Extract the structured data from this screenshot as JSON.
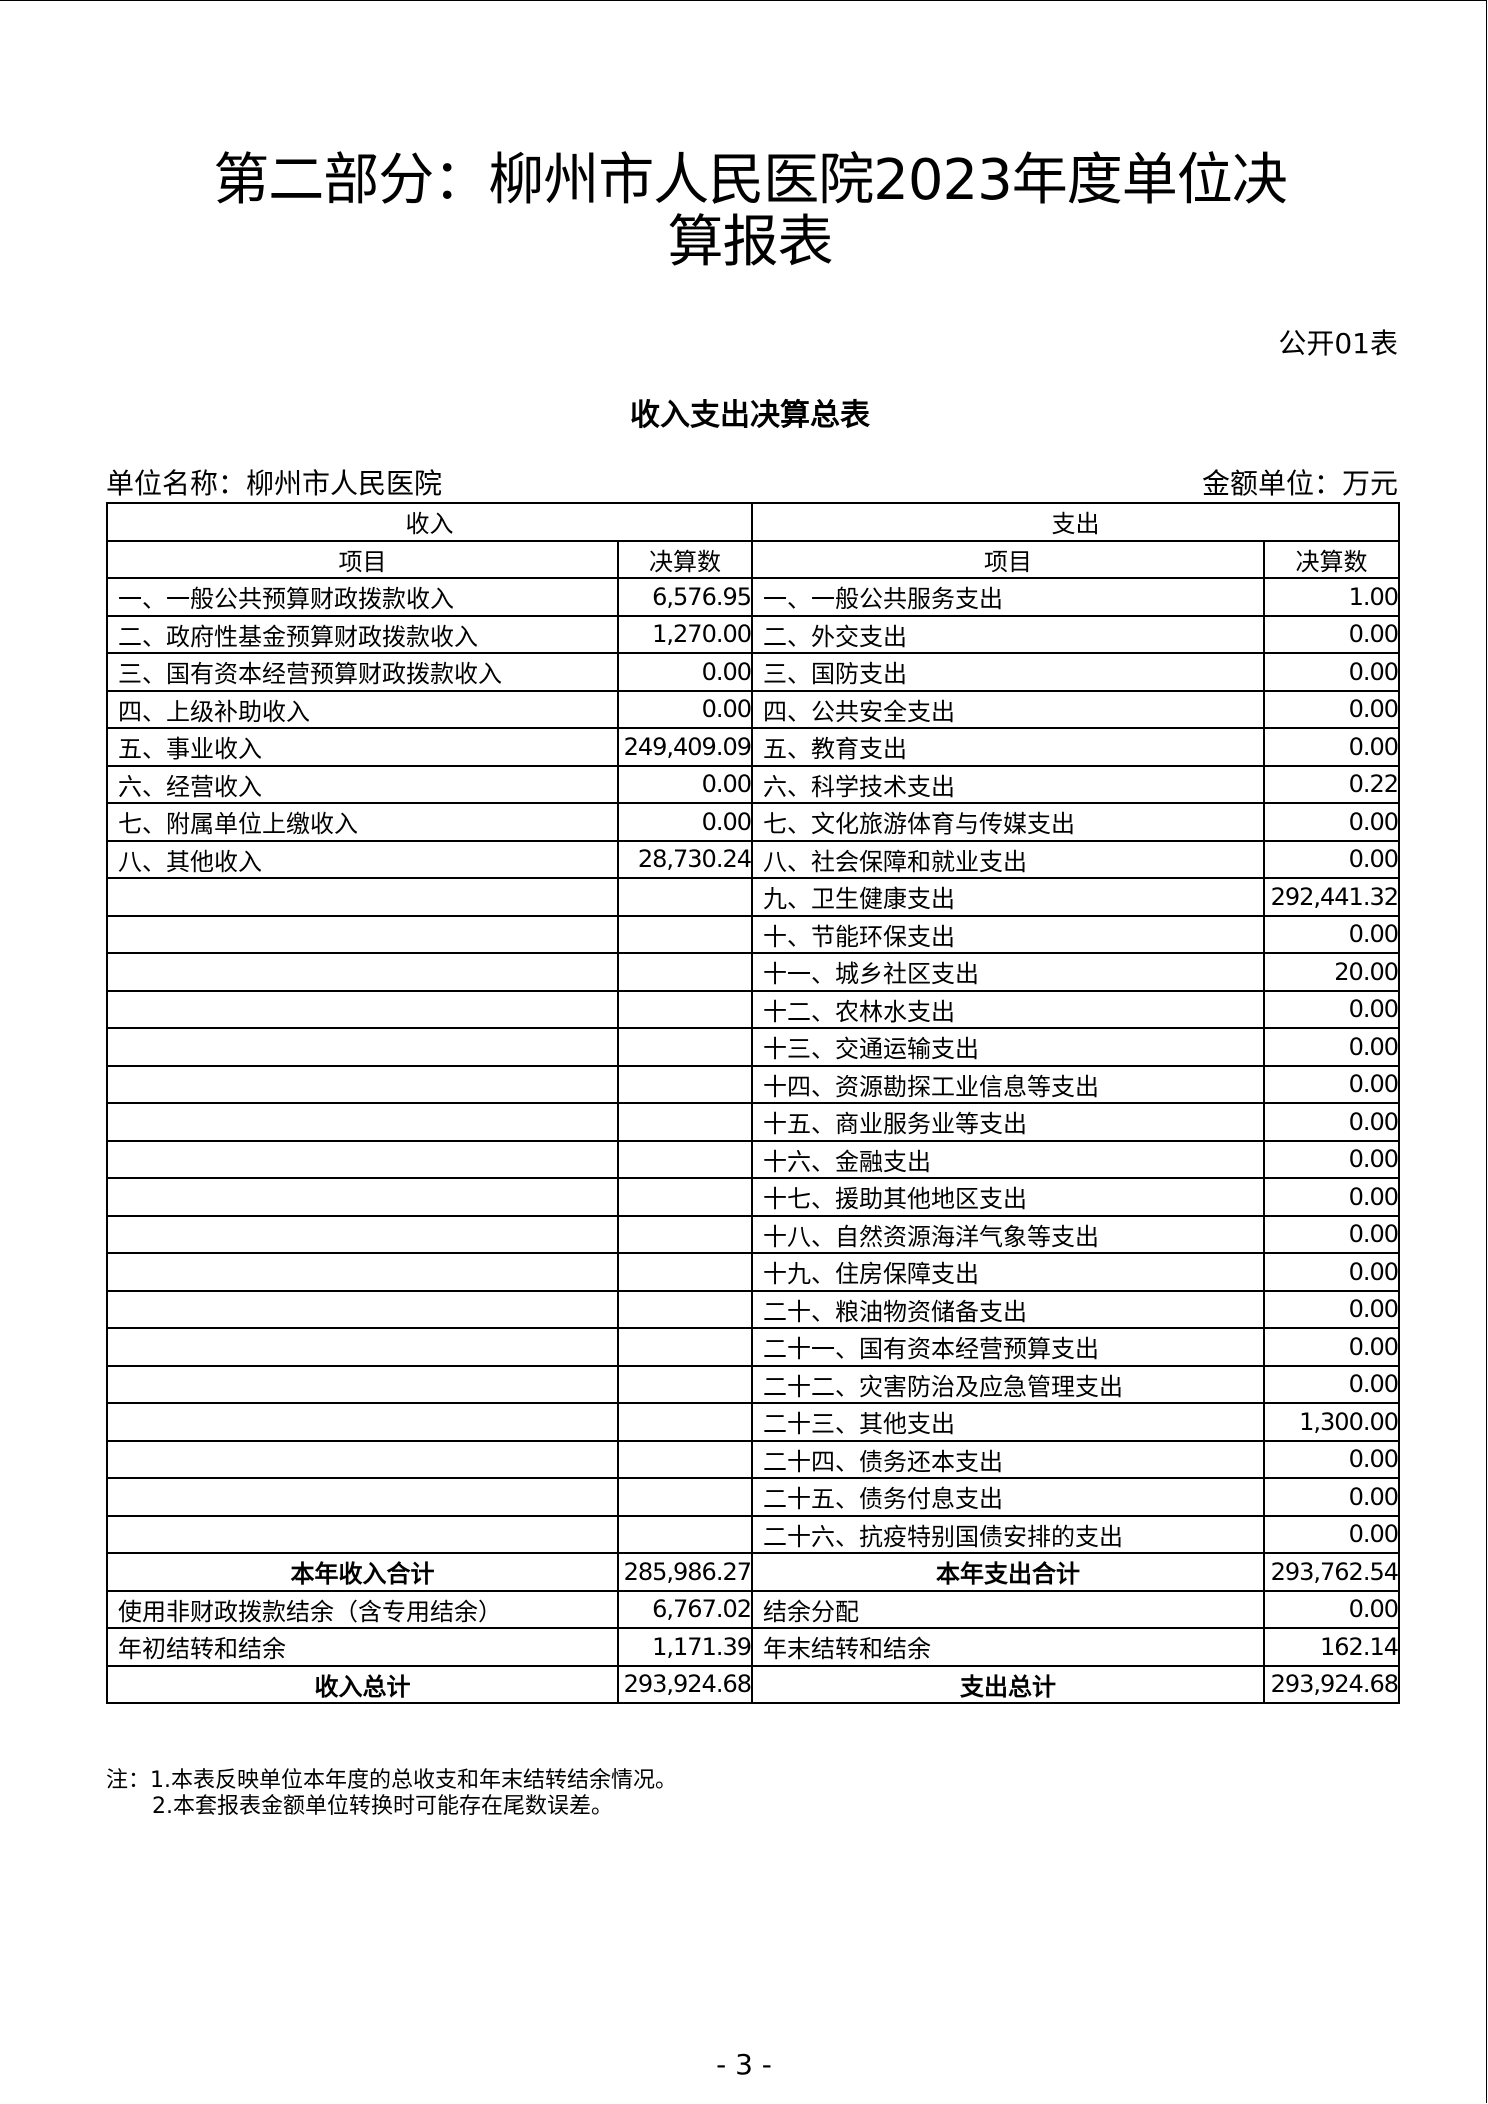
{
  "title_line1": "第二部分：柳州市人民医院2023年度单位决",
  "title_line2": "算报表",
  "table_code": "公开01表",
  "table_title": "收入支出决算总表",
  "unit_name": "单位名称：柳州市人民医院",
  "amount_unit": "金额单位：万元",
  "headers": {
    "income": "收入",
    "expense": "支出",
    "item": "项目",
    "amount": "决算数"
  },
  "income": [
    {
      "label": "一、一般公共预算财政拨款收入",
      "value": "6,576.95"
    },
    {
      "label": "二、政府性基金预算财政拨款收入",
      "value": "1,270.00"
    },
    {
      "label": "三、国有资本经营预算财政拨款收入",
      "value": "0.00"
    },
    {
      "label": "四、上级补助收入",
      "value": "0.00"
    },
    {
      "label": "五、事业收入",
      "value": "249,409.09"
    },
    {
      "label": "六、经营收入",
      "value": "0.00"
    },
    {
      "label": "七、附属单位上缴收入",
      "value": "0.00"
    },
    {
      "label": "八、其他收入",
      "value": "28,730.24"
    }
  ],
  "expense": [
    {
      "label": "一、一般公共服务支出",
      "value": "1.00"
    },
    {
      "label": "二、外交支出",
      "value": "0.00"
    },
    {
      "label": "三、国防支出",
      "value": "0.00"
    },
    {
      "label": "四、公共安全支出",
      "value": "0.00"
    },
    {
      "label": "五、教育支出",
      "value": "0.00"
    },
    {
      "label": "六、科学技术支出",
      "value": "0.22"
    },
    {
      "label": "七、文化旅游体育与传媒支出",
      "value": "0.00"
    },
    {
      "label": "八、社会保障和就业支出",
      "value": "0.00"
    },
    {
      "label": "九、卫生健康支出",
      "value": "292,441.32"
    },
    {
      "label": "十、节能环保支出",
      "value": "0.00"
    },
    {
      "label": "十一、城乡社区支出",
      "value": "20.00"
    },
    {
      "label": "十二、农林水支出",
      "value": "0.00"
    },
    {
      "label": "十三、交通运输支出",
      "value": "0.00"
    },
    {
      "label": "十四、资源勘探工业信息等支出",
      "value": "0.00"
    },
    {
      "label": "十五、商业服务业等支出",
      "value": "0.00"
    },
    {
      "label": "十六、金融支出",
      "value": "0.00"
    },
    {
      "label": "十七、援助其他地区支出",
      "value": "0.00"
    },
    {
      "label": "十八、自然资源海洋气象等支出",
      "value": "0.00"
    },
    {
      "label": "十九、住房保障支出",
      "value": "0.00"
    },
    {
      "label": "二十、粮油物资储备支出",
      "value": "0.00"
    },
    {
      "label": "二十一、国有资本经营预算支出",
      "value": "0.00"
    },
    {
      "label": "二十二、灾害防治及应急管理支出",
      "value": "0.00"
    },
    {
      "label": "二十三、其他支出",
      "value": "1,300.00"
    },
    {
      "label": "二十四、债务还本支出",
      "value": "0.00"
    },
    {
      "label": "二十五、债务付息支出",
      "value": "0.00"
    },
    {
      "label": "二十六、抗疫特别国债安排的支出",
      "value": "0.00"
    }
  ],
  "summary": [
    {
      "in_label": "本年收入合计",
      "in_value": "285,986.27",
      "out_label": "本年支出合计",
      "out_value": "293,762.54",
      "bold": true
    },
    {
      "in_label": "使用非财政拨款结余（含专用结余）",
      "in_value": "6,767.02",
      "out_label": "结余分配",
      "out_value": "0.00",
      "bold": false
    },
    {
      "in_label": "年初结转和结余",
      "in_value": "1,171.39",
      "out_label": "年末结转和结余",
      "out_value": "162.14",
      "bold": false
    },
    {
      "in_label": "收入总计",
      "in_value": "293,924.68",
      "out_label": "支出总计",
      "out_value": "293,924.68",
      "bold": true
    }
  ],
  "notes": [
    "注：1.本表反映单位本年度的总收支和年末结转结余情况。",
    "2.本套报表金额单位转换时可能存在尾数误差。"
  ],
  "page_number": "- 3 -"
}
